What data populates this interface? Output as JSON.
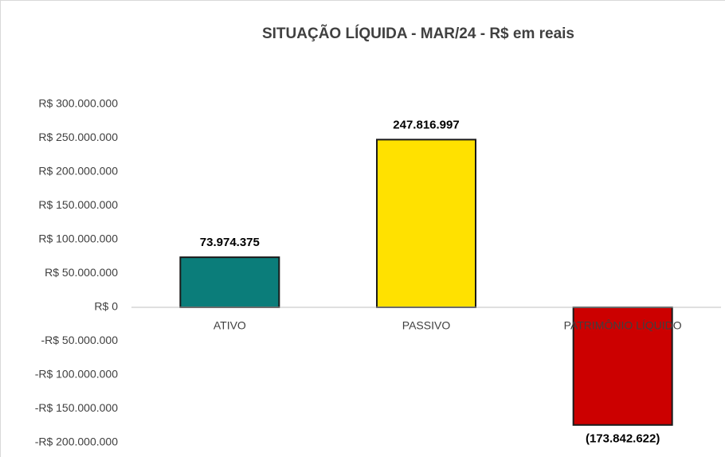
{
  "chart_data": {
    "type": "bar",
    "title": "SITUAÇÃO LÍQUIDA - MAR/24 - R$ em reais",
    "categories": [
      "ATIVO",
      "PASSIVO",
      "PATRIMÔNIO LÍQUIDO"
    ],
    "values": [
      73974375,
      247816997,
      -173842622
    ],
    "value_labels": [
      "73.974.375",
      "247.816.997",
      "(173.842.622)"
    ],
    "colors": [
      "#0b7d7a",
      "#ffe100",
      "#cc0000"
    ],
    "ylim": [
      -200000000,
      300000000
    ],
    "yticks": [
      {
        "value": -200000000,
        "label": "-R$ 200.000.000"
      },
      {
        "value": -150000000,
        "label": "-R$ 150.000.000"
      },
      {
        "value": -100000000,
        "label": "-R$ 100.000.000"
      },
      {
        "value": -50000000,
        "label": "-R$ 50.000.000"
      },
      {
        "value": 0,
        "label": "R$ 0"
      },
      {
        "value": 50000000,
        "label": "R$ 50.000.000"
      },
      {
        "value": 100000000,
        "label": "R$ 100.000.000"
      },
      {
        "value": 150000000,
        "label": "R$ 150.000.000"
      },
      {
        "value": 200000000,
        "label": "R$ 200.000.000"
      },
      {
        "value": 250000000,
        "label": "R$ 250.000.000"
      },
      {
        "value": 300000000,
        "label": "R$ 300.000.000"
      }
    ],
    "grid": false
  }
}
